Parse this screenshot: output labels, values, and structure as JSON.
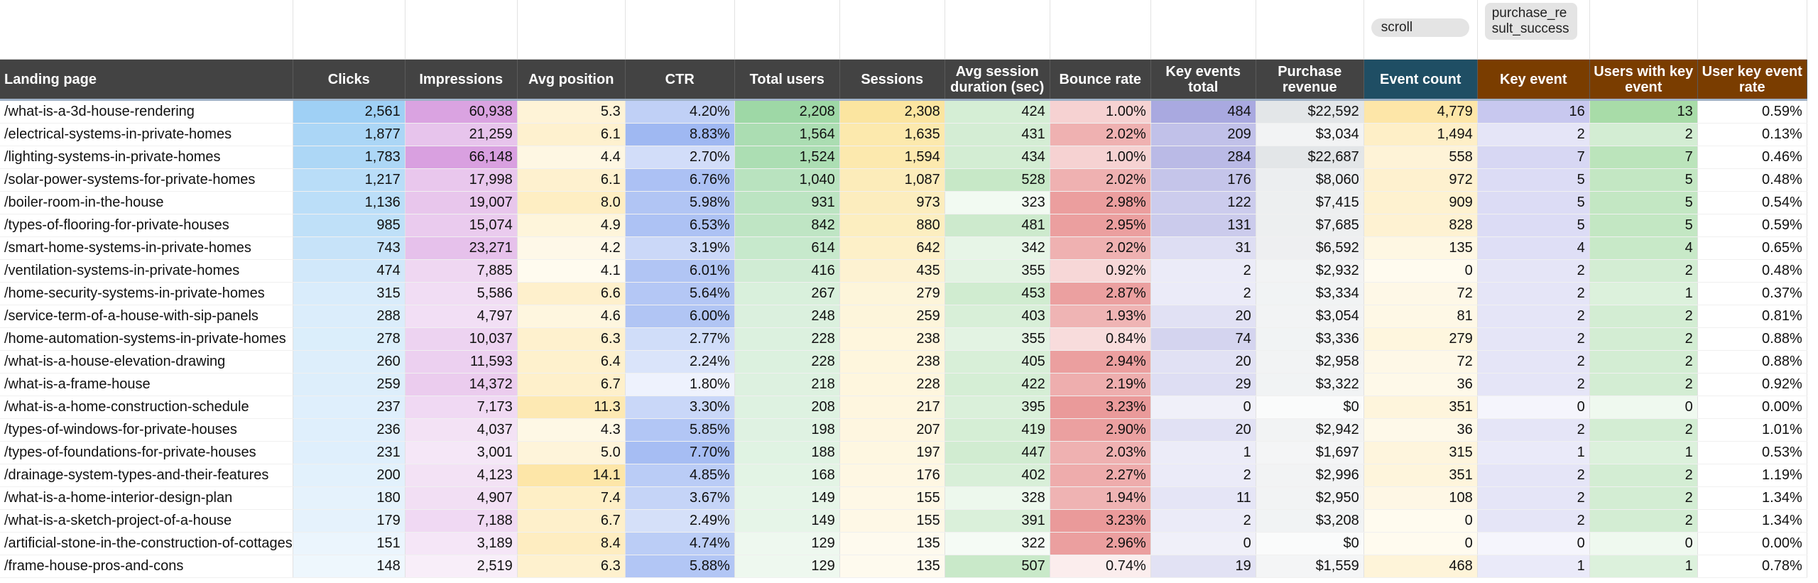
{
  "filters": {
    "scroll": "scroll",
    "purchase": "purchase_result_success"
  },
  "headers": [
    "Landing page",
    "Clicks",
    "Impressions",
    "Avg position",
    "CTR",
    "Total users",
    "Sessions",
    "Avg session duration (sec)",
    "Bounce rate",
    "Key events total",
    "Purchase revenue",
    "Event count",
    "Key event",
    "Users with key event",
    "User key event rate"
  ],
  "rows": [
    [
      "/what-is-a-3d-house-rendering",
      "2,561",
      "60,938",
      "5.3",
      "4.20%",
      "2,208",
      "2,308",
      "424",
      "1.00%",
      "484",
      "$22,592",
      "4,779",
      "16",
      "13",
      "0.59%"
    ],
    [
      "/electrical-systems-in-private-homes",
      "1,877",
      "21,259",
      "6.1",
      "8.83%",
      "1,564",
      "1,635",
      "431",
      "2.02%",
      "209",
      "$3,034",
      "1,494",
      "2",
      "2",
      "0.13%"
    ],
    [
      "/lighting-systems-in-private-homes",
      "1,783",
      "66,148",
      "4.4",
      "2.70%",
      "1,524",
      "1,594",
      "434",
      "1.00%",
      "284",
      "$22,687",
      "558",
      "7",
      "7",
      "0.46%"
    ],
    [
      "/solar-power-systems-for-private-homes",
      "1,217",
      "17,998",
      "6.1",
      "6.76%",
      "1,040",
      "1,087",
      "528",
      "2.02%",
      "176",
      "$8,060",
      "972",
      "5",
      "5",
      "0.48%"
    ],
    [
      "/boiler-room-in-the-house",
      "1,136",
      "19,007",
      "8.0",
      "5.98%",
      "931",
      "973",
      "323",
      "2.98%",
      "122",
      "$7,415",
      "909",
      "5",
      "5",
      "0.54%"
    ],
    [
      "/types-of-flooring-for-private-houses",
      "985",
      "15,074",
      "4.9",
      "6.53%",
      "842",
      "880",
      "481",
      "2.95%",
      "131",
      "$7,685",
      "828",
      "5",
      "5",
      "0.59%"
    ],
    [
      "/smart-home-systems-in-private-homes",
      "743",
      "23,271",
      "4.2",
      "3.19%",
      "614",
      "642",
      "342",
      "2.02%",
      "31",
      "$6,592",
      "135",
      "4",
      "4",
      "0.65%"
    ],
    [
      "/ventilation-systems-in-private-homes",
      "474",
      "7,885",
      "4.1",
      "6.01%",
      "416",
      "435",
      "355",
      "0.92%",
      "2",
      "$2,932",
      "0",
      "2",
      "2",
      "0.48%"
    ],
    [
      "/home-security-systems-in-private-homes",
      "315",
      "5,586",
      "6.6",
      "5.64%",
      "267",
      "279",
      "453",
      "2.87%",
      "2",
      "$3,334",
      "72",
      "2",
      "1",
      "0.37%"
    ],
    [
      "/service-term-of-a-house-with-sip-panels",
      "288",
      "4,797",
      "4.6",
      "6.00%",
      "248",
      "259",
      "403",
      "1.93%",
      "20",
      "$3,054",
      "81",
      "2",
      "2",
      "0.81%"
    ],
    [
      "/home-automation-systems-in-private-homes",
      "278",
      "10,037",
      "6.3",
      "2.77%",
      "228",
      "238",
      "355",
      "0.84%",
      "74",
      "$3,336",
      "279",
      "2",
      "2",
      "0.88%"
    ],
    [
      "/what-is-a-house-elevation-drawing",
      "260",
      "11,593",
      "6.4",
      "2.24%",
      "228",
      "238",
      "405",
      "2.94%",
      "20",
      "$2,958",
      "72",
      "2",
      "2",
      "0.88%"
    ],
    [
      "/what-is-a-frame-house",
      "259",
      "14,372",
      "6.7",
      "1.80%",
      "218",
      "228",
      "422",
      "2.19%",
      "29",
      "$3,322",
      "36",
      "2",
      "2",
      "0.92%"
    ],
    [
      "/what-is-a-home-construction-schedule",
      "237",
      "7,173",
      "11.3",
      "3.30%",
      "208",
      "217",
      "395",
      "3.23%",
      "0",
      "$0",
      "351",
      "0",
      "0",
      "0.00%"
    ],
    [
      "/types-of-windows-for-private-houses",
      "236",
      "4,037",
      "4.3",
      "5.85%",
      "198",
      "207",
      "419",
      "2.90%",
      "20",
      "$2,942",
      "36",
      "2",
      "2",
      "1.01%"
    ],
    [
      "/types-of-foundations-for-private-houses",
      "231",
      "3,001",
      "5.0",
      "7.70%",
      "188",
      "197",
      "447",
      "2.03%",
      "1",
      "$1,697",
      "315",
      "1",
      "1",
      "0.53%"
    ],
    [
      "/drainage-system-types-and-their-features",
      "200",
      "4,123",
      "14.1",
      "4.85%",
      "168",
      "176",
      "402",
      "2.27%",
      "2",
      "$2,996",
      "351",
      "2",
      "2",
      "1.19%"
    ],
    [
      "/what-is-a-home-interior-design-plan",
      "180",
      "4,907",
      "7.4",
      "3.67%",
      "149",
      "155",
      "328",
      "1.94%",
      "11",
      "$2,950",
      "108",
      "2",
      "2",
      "1.34%"
    ],
    [
      "/what-is-a-sketch-project-of-a-house",
      "179",
      "7,188",
      "6.7",
      "2.49%",
      "149",
      "155",
      "391",
      "3.23%",
      "2",
      "$3,208",
      "0",
      "2",
      "2",
      "1.34%"
    ],
    [
      "/artificial-stone-in-the-construction-of-cottages",
      "151",
      "3,189",
      "8.4",
      "4.74%",
      "129",
      "135",
      "322",
      "2.96%",
      "0",
      "$0",
      "0",
      "0",
      "0",
      "0.00%"
    ],
    [
      "/frame-house-pros-and-cons",
      "148",
      "2,519",
      "6.3",
      "5.88%",
      "129",
      "135",
      "507",
      "0.74%",
      "19",
      "$1,559",
      "468",
      "1",
      "1",
      "0.78%"
    ]
  ],
  "colors": {
    "header": "#434343",
    "event_header": "#1f4e64",
    "key_header": "#7a3d00",
    "heat": [
      "#9fd0f5",
      "#d9a0e0",
      "#fde6a8",
      "#9fb8f2",
      "#9ed8a6",
      "#fbe5a0",
      "#c7e8c7",
      "#ea9a9a",
      "#a9a9e0",
      "#e3e6e8",
      "#fde6a8",
      "#c8c8ef",
      "#a8dca8",
      "#ffffff"
    ]
  }
}
